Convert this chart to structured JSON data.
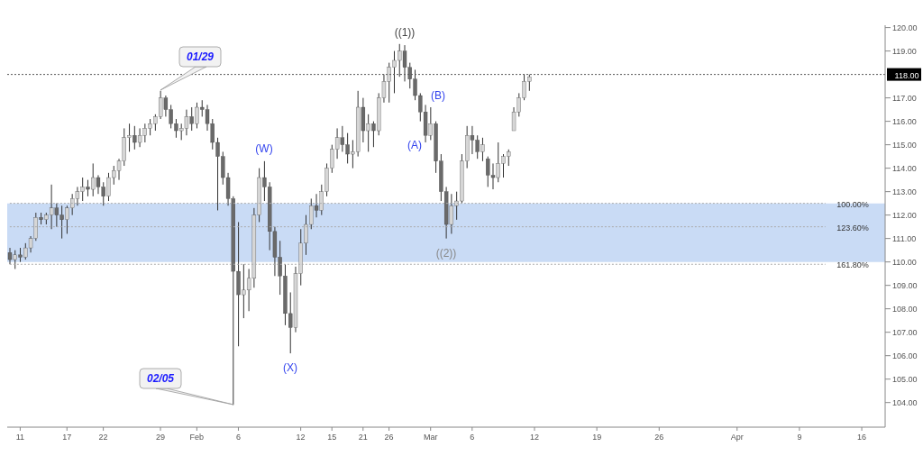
{
  "chart_data": {
    "type": "candlestick",
    "color": "#333333",
    "categories": [
      null,
      null,
      "11",
      null,
      null,
      null,
      null,
      null,
      null,
      null,
      null,
      "17",
      null,
      null,
      null,
      null,
      null,
      null,
      "22",
      null,
      null,
      null,
      null,
      null,
      null,
      null,
      null,
      null,
      null,
      "29",
      null,
      null,
      null,
      null,
      null,
      null,
      "Feb",
      null,
      null,
      null,
      null,
      null,
      null,
      null,
      "6",
      null,
      null,
      null,
      null,
      null,
      null,
      null,
      null,
      null,
      null,
      null,
      "12",
      null,
      null,
      null,
      null,
      null,
      "15",
      null,
      null,
      null,
      null,
      null,
      "21",
      null,
      null,
      null,
      null,
      "26",
      null,
      null,
      null,
      null,
      null,
      null,
      null,
      "Mar",
      null,
      null,
      null,
      null,
      null,
      null,
      null,
      "6",
      null,
      null,
      null,
      null,
      null,
      null,
      null,
      null,
      null,
      null,
      null,
      "12",
      null,
      null,
      null,
      null,
      null,
      null,
      null,
      null,
      null,
      null,
      null,
      "19",
      null,
      null,
      null,
      null,
      null,
      null,
      null,
      null,
      null,
      null,
      null,
      "26",
      null,
      null,
      null,
      null,
      null,
      null,
      null,
      null,
      null,
      null,
      null,
      null,
      null,
      null,
      "Apr",
      null,
      null,
      null,
      null,
      null,
      null,
      null,
      null,
      null,
      null,
      null,
      "9",
      null,
      null,
      null,
      null,
      null,
      null,
      null,
      null,
      null,
      null,
      null,
      "16",
      null,
      null,
      null,
      null
    ],
    "ohlc": [
      [
        110.4,
        110.6,
        109.9,
        110.1
      ],
      [
        110.1,
        110.5,
        109.7,
        110.3
      ],
      [
        110.3,
        110.6,
        110.0,
        110.2
      ],
      [
        110.2,
        110.8,
        110.1,
        110.6
      ],
      [
        110.6,
        111.1,
        110.4,
        111.0
      ],
      [
        111.0,
        112.1,
        110.9,
        111.9
      ],
      [
        111.9,
        112.1,
        111.6,
        111.8
      ],
      [
        111.8,
        112.1,
        111.6,
        112.0
      ],
      [
        112.0,
        113.3,
        111.4,
        112.3
      ],
      [
        112.3,
        112.5,
        111.5,
        112.0
      ],
      [
        112.0,
        112.4,
        111.0,
        111.8
      ],
      [
        111.8,
        112.4,
        111.2,
        112.3
      ],
      [
        112.3,
        112.9,
        112.0,
        112.7
      ],
      [
        112.7,
        113.2,
        112.4,
        113.0
      ],
      [
        113.0,
        113.6,
        112.6,
        113.2
      ],
      [
        113.2,
        113.5,
        112.8,
        113.1
      ],
      [
        113.1,
        114.2,
        112.8,
        113.6
      ],
      [
        113.6,
        113.7,
        112.9,
        113.2
      ],
      [
        113.2,
        113.4,
        112.4,
        112.8
      ],
      [
        112.8,
        113.8,
        112.6,
        113.6
      ],
      [
        113.6,
        114.1,
        113.3,
        113.9
      ],
      [
        113.9,
        114.4,
        113.5,
        114.3
      ],
      [
        114.3,
        115.7,
        114.1,
        115.3
      ],
      [
        115.3,
        115.9,
        114.7,
        115.4
      ],
      [
        115.4,
        115.8,
        114.8,
        115.1
      ],
      [
        115.1,
        115.7,
        114.9,
        115.4
      ],
      [
        115.4,
        115.9,
        115.1,
        115.7
      ],
      [
        115.7,
        116.1,
        115.4,
        115.9
      ],
      [
        115.9,
        116.3,
        115.6,
        116.2
      ],
      [
        116.2,
        117.3,
        116.1,
        117.0
      ],
      [
        117.0,
        117.1,
        116.2,
        116.5
      ],
      [
        116.5,
        116.7,
        115.7,
        115.9
      ],
      [
        115.9,
        116.1,
        115.3,
        115.6
      ],
      [
        115.6,
        115.9,
        115.2,
        115.7
      ],
      [
        115.7,
        116.5,
        115.4,
        116.2
      ],
      [
        116.2,
        116.6,
        115.6,
        115.9
      ],
      [
        115.9,
        116.8,
        115.7,
        116.6
      ],
      [
        116.6,
        116.9,
        116.2,
        116.5
      ],
      [
        116.5,
        116.7,
        115.6,
        115.9
      ],
      [
        115.9,
        116.1,
        114.8,
        115.1
      ],
      [
        115.1,
        115.3,
        112.2,
        114.5
      ],
      [
        114.5,
        114.7,
        113.3,
        113.6
      ],
      [
        113.6,
        113.8,
        112.4,
        112.7
      ],
      [
        112.7,
        112.8,
        103.9,
        109.6
      ],
      [
        109.6,
        111.7,
        106.4,
        108.6
      ],
      [
        108.6,
        109.9,
        107.6,
        108.8
      ],
      [
        108.8,
        109.7,
        107.9,
        109.3
      ],
      [
        109.3,
        112.3,
        108.9,
        112.0
      ],
      [
        112.0,
        114.0,
        111.7,
        113.6
      ],
      [
        113.6,
        114.3,
        112.6,
        113.2
      ],
      [
        113.2,
        113.4,
        110.5,
        111.3
      ],
      [
        111.3,
        111.5,
        109.4,
        110.2
      ],
      [
        110.2,
        110.9,
        108.6,
        109.4
      ],
      [
        109.4,
        109.9,
        107.3,
        107.8
      ],
      [
        107.8,
        108.7,
        106.1,
        107.2
      ],
      [
        107.2,
        109.8,
        107.0,
        109.5
      ],
      [
        109.5,
        111.4,
        109.0,
        110.8
      ],
      [
        110.8,
        112.0,
        110.3,
        111.6
      ],
      [
        111.6,
        112.7,
        111.4,
        112.4
      ],
      [
        112.4,
        112.9,
        111.9,
        112.2
      ],
      [
        112.2,
        113.3,
        112.0,
        113.0
      ],
      [
        113.0,
        114.2,
        112.8,
        114.0
      ],
      [
        114.0,
        115.0,
        113.8,
        114.8
      ],
      [
        114.8,
        115.7,
        114.4,
        115.3
      ],
      [
        115.3,
        115.8,
        114.7,
        115.0
      ],
      [
        115.0,
        115.5,
        114.2,
        114.6
      ],
      [
        114.6,
        115.2,
        114.0,
        114.7
      ],
      [
        114.7,
        117.3,
        114.5,
        116.6
      ],
      [
        116.6,
        117.0,
        115.1,
        115.6
      ],
      [
        115.6,
        116.3,
        114.7,
        115.9
      ],
      [
        115.9,
        116.0,
        114.9,
        115.6
      ],
      [
        115.6,
        117.2,
        115.4,
        117.0
      ],
      [
        117.0,
        118.0,
        116.8,
        117.7
      ],
      [
        117.7,
        118.5,
        116.8,
        118.3
      ],
      [
        118.3,
        119.0,
        117.2,
        118.6
      ],
      [
        118.6,
        119.3,
        117.9,
        119.0
      ],
      [
        119.0,
        119.25,
        117.7,
        118.3
      ],
      [
        118.3,
        118.5,
        117.4,
        117.8
      ],
      [
        117.8,
        118.2,
        116.9,
        117.1
      ],
      [
        117.1,
        117.2,
        116.0,
        116.4
      ],
      [
        116.4,
        116.7,
        115.1,
        115.4
      ],
      [
        115.4,
        116.6,
        115.2,
        115.9
      ],
      [
        115.9,
        116.0,
        113.8,
        114.3
      ],
      [
        114.3,
        114.6,
        112.6,
        113.0
      ],
      [
        113.0,
        113.2,
        111.0,
        111.6
      ],
      [
        111.6,
        112.9,
        111.2,
        112.4
      ],
      [
        112.4,
        113.0,
        111.8,
        112.6
      ],
      [
        112.6,
        114.6,
        112.5,
        114.3
      ],
      [
        114.3,
        115.8,
        114.0,
        115.4
      ],
      [
        115.4,
        115.8,
        114.6,
        115.2
      ],
      [
        115.2,
        115.4,
        114.4,
        114.7
      ],
      [
        114.7,
        115.3,
        114.3,
        115.0
      ],
      [
        114.4,
        114.5,
        113.2,
        113.7
      ],
      [
        113.7,
        114.2,
        113.1,
        113.6
      ],
      [
        113.6,
        115.1,
        113.4,
        114.2
      ],
      [
        114.2,
        114.6,
        113.6,
        114.5
      ],
      [
        114.5,
        114.8,
        114.1,
        114.7
      ],
      [
        115.6,
        116.6,
        115.6,
        116.4
      ],
      [
        116.4,
        117.2,
        116.2,
        117.0
      ],
      [
        117.0,
        118.0,
        116.9,
        117.7
      ],
      [
        117.7,
        118.0,
        117.3,
        117.9
      ],
      null,
      null,
      null,
      null,
      null,
      null,
      null,
      null,
      null,
      null,
      null,
      null,
      null,
      null,
      null,
      null,
      null,
      null,
      null,
      null,
      null,
      null,
      null,
      null,
      null,
      null,
      null,
      null,
      null,
      null,
      null,
      null,
      null,
      null,
      null,
      null,
      null,
      null,
      null,
      null,
      null,
      null,
      null,
      null,
      null,
      null,
      null,
      null,
      null,
      null,
      null,
      null,
      null,
      null,
      null,
      null,
      null,
      null,
      null,
      null,
      null,
      null,
      null,
      null,
      null,
      null,
      null,
      null
    ],
    "ylim": [
      102.95,
      120.1
    ],
    "yticks": [
      {
        "value": 104,
        "label": "104.00"
      },
      {
        "value": 105,
        "label": "105.00"
      },
      {
        "value": 106,
        "label": "106.00"
      },
      {
        "value": 107,
        "label": "107.00"
      },
      {
        "value": 108,
        "label": "108.00"
      },
      {
        "value": 109,
        "label": "109.00"
      },
      {
        "value": 110,
        "label": "110.00"
      },
      {
        "value": 111,
        "label": "111.00"
      },
      {
        "value": 112,
        "label": "112.00"
      },
      {
        "value": 113,
        "label": "113.00"
      },
      {
        "value": 114,
        "label": "114.00"
      },
      {
        "value": 115,
        "label": "115.00"
      },
      {
        "value": 116,
        "label": "116.00"
      },
      {
        "value": 117,
        "label": "117.00"
      },
      {
        "value": 119,
        "label": "119.00"
      },
      {
        "value": 120,
        "label": "120.00"
      }
    ],
    "ref_lines": [
      {
        "axis": "y",
        "value": 118,
        "label": "118.00",
        "color": "#555555",
        "line_style": "dotted"
      },
      {
        "axis": "y",
        "value": 112.5,
        "color": "#aaaaaa",
        "line_style": "dotted"
      },
      {
        "axis": "y",
        "value": 111.5,
        "color": "#aaaaaa",
        "line_style": "dotted"
      },
      {
        "axis": "y",
        "value": 109.9,
        "color": "#aaaaaa",
        "line_style": "dotted"
      }
    ],
    "bands": [
      {
        "axis": "y",
        "from": 110,
        "to": 112.5,
        "color": "#c9dbf5"
      }
    ],
    "annotations": [
      "01/29",
      "02/05",
      "((1))",
      "(W)",
      "(X)",
      "(A)",
      "(B)",
      "((2))",
      "100.00%",
      "123.60%",
      "161.80%"
    ],
    "grid": false,
    "legend": false
  }
}
